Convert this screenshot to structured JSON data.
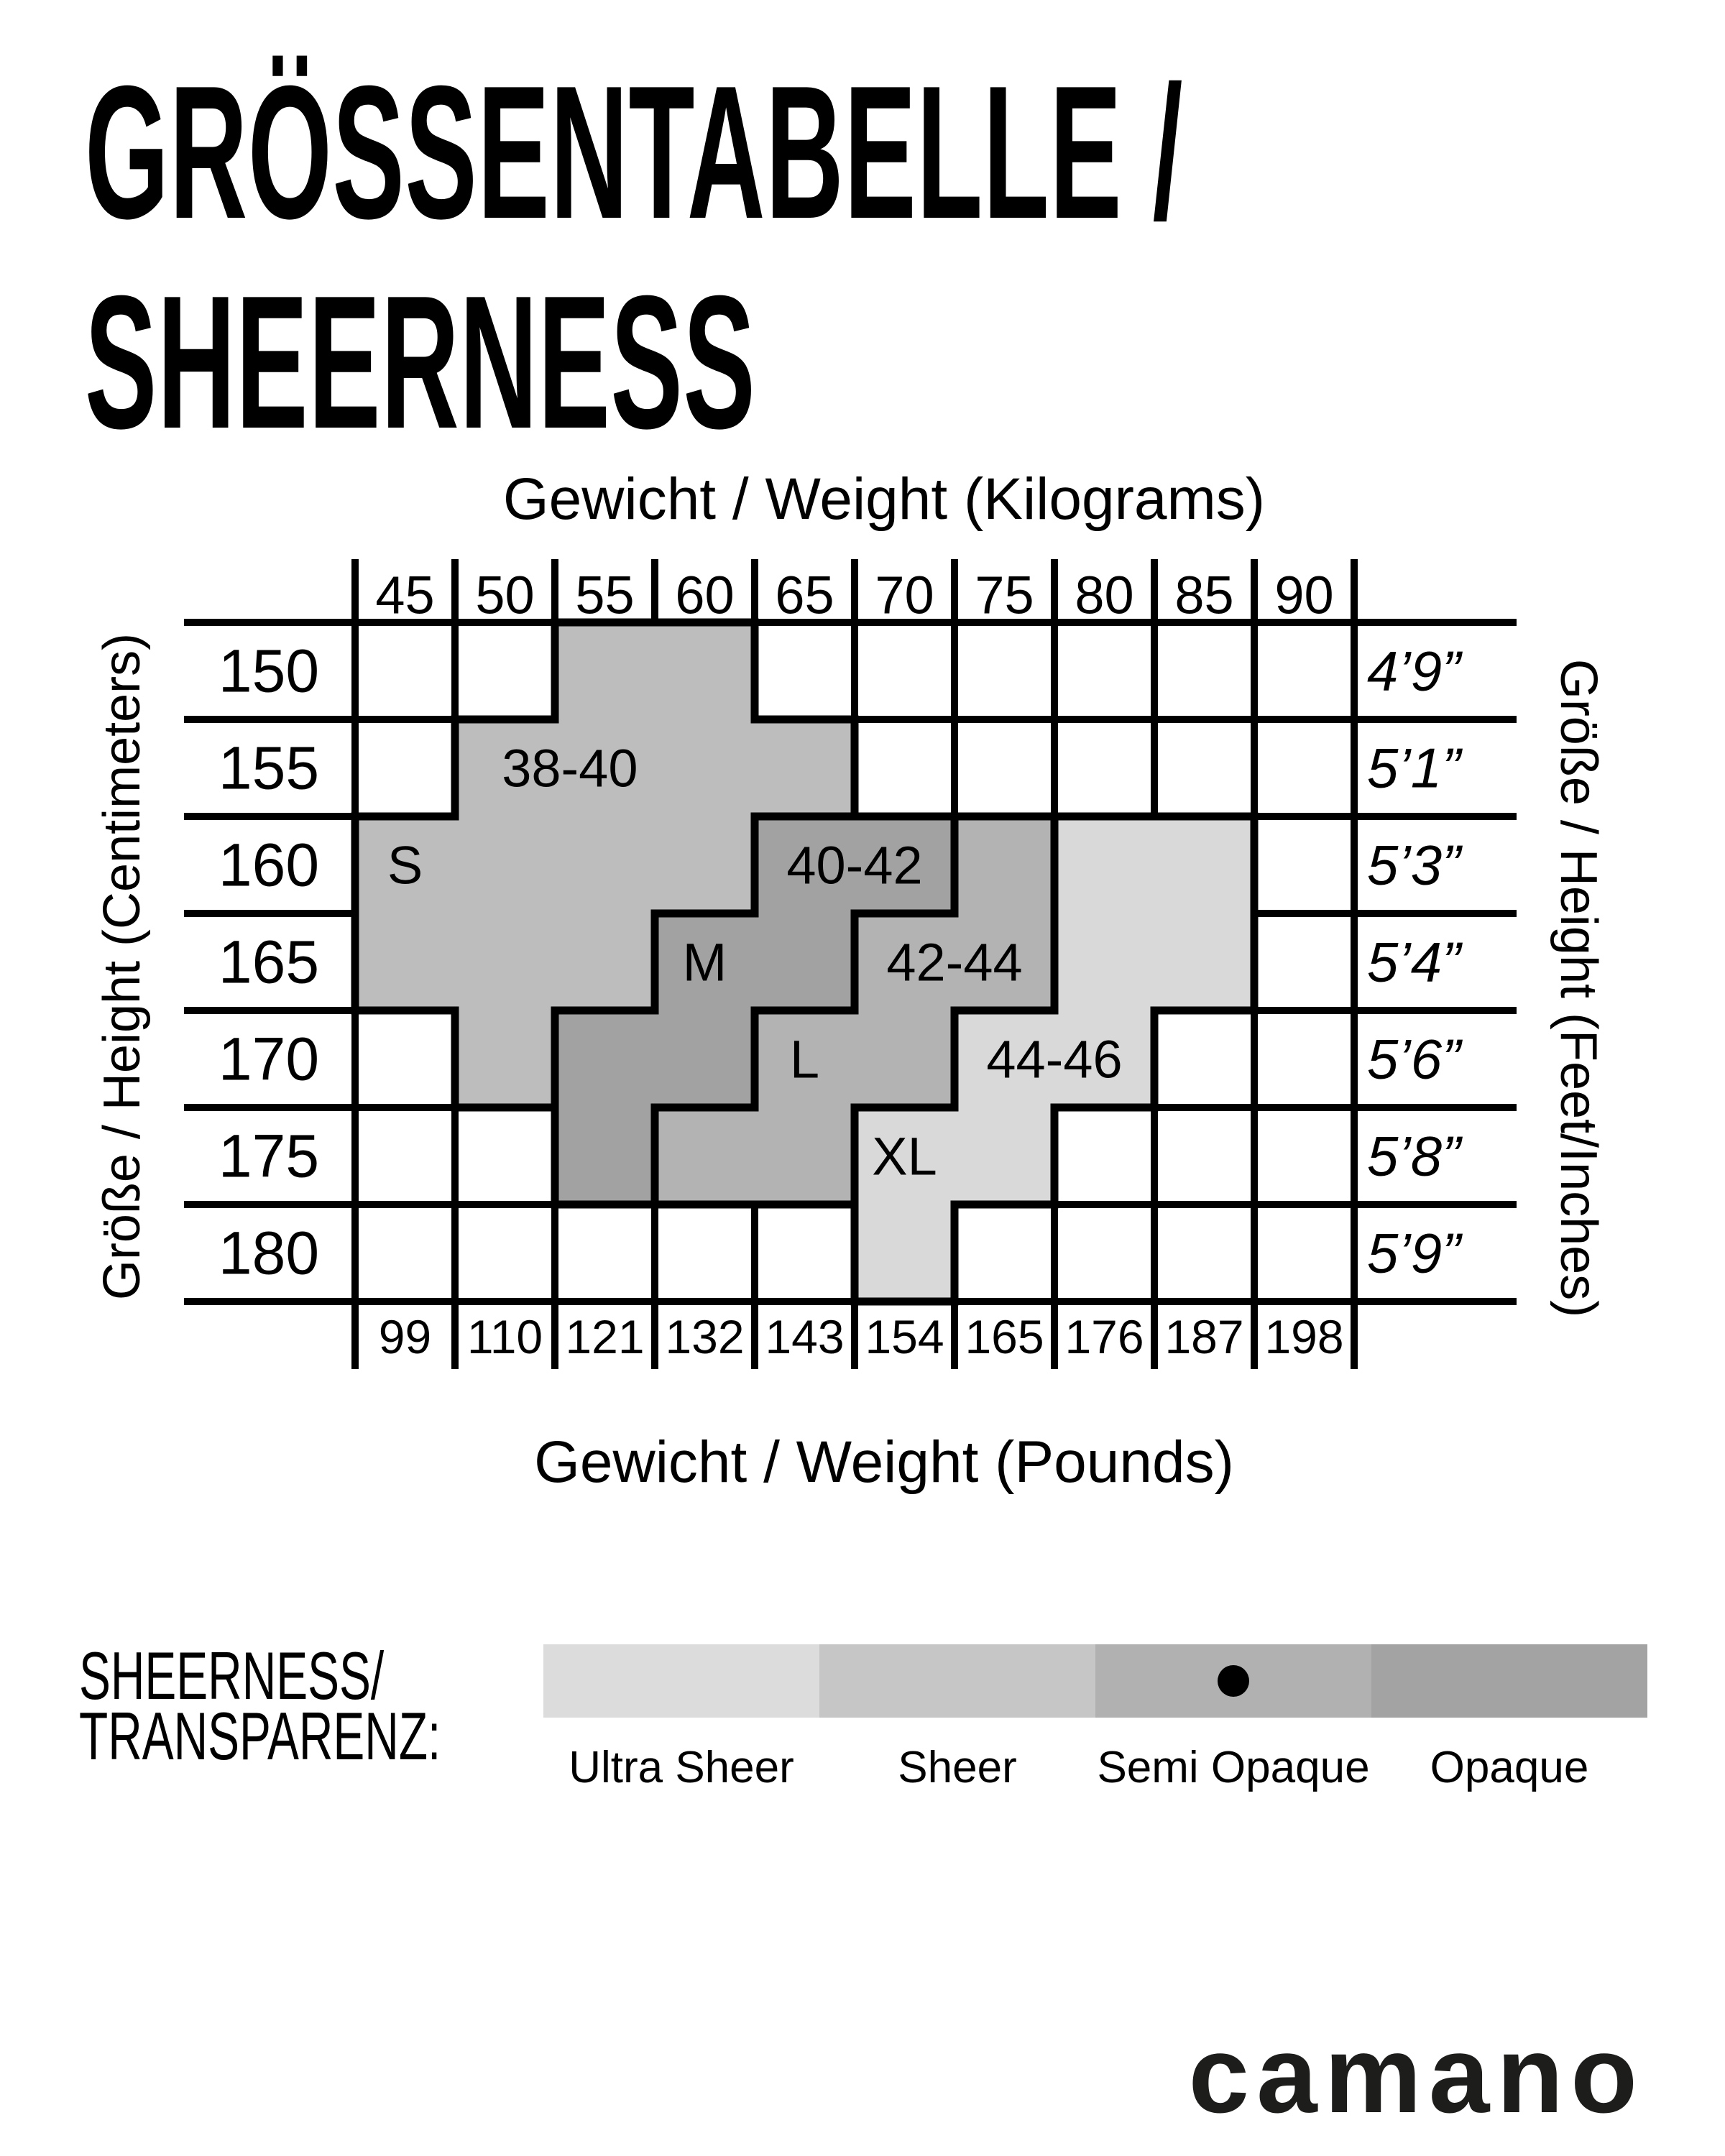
{
  "page_title": {
    "line1": "GRÖSSENTABELLE /",
    "line2": "SHEERNESS"
  },
  "axes": {
    "top_title": "Gewicht / Weight (Kilograms)",
    "bottom_title": "Gewicht / Weight (Pounds)",
    "left_title": "Größe / Height (Centimeters)",
    "right_title": "Größe / Height (Feet/Inches)"
  },
  "chart_data": {
    "type": "heatmap",
    "x_top_kilograms": [
      "45",
      "50",
      "55",
      "60",
      "65",
      "70",
      "75",
      "80",
      "85",
      "90"
    ],
    "x_bottom_pounds": [
      "99",
      "110",
      "121",
      "132",
      "143",
      "154",
      "165",
      "176",
      "187",
      "198"
    ],
    "y_left_centimeters": [
      "150",
      "155",
      "160",
      "165",
      "170",
      "175",
      "180"
    ],
    "y_right_feet_inches": [
      "4’9”",
      "5’1”",
      "5’3”",
      "5’4”",
      "5’6”",
      "5’8”",
      "5’9”"
    ],
    "grid": {
      "columns": 10,
      "rows": 7,
      "line_color": "#000000"
    },
    "regions": [
      {
        "size": "S",
        "color": "#bdbdbd",
        "cells": [
          {
            "row": 0,
            "c0": 2,
            "c1": 3
          },
          {
            "row": 1,
            "c0": 1,
            "c1": 4
          },
          {
            "row": 2,
            "c0": 0,
            "c1": 3
          },
          {
            "row": 3,
            "c0": 0,
            "c1": 2
          },
          {
            "row": 4,
            "c0": 1,
            "c1": 1
          }
        ],
        "labels": [
          {
            "text": "38-40",
            "row": 1,
            "col": 2.15
          },
          {
            "text": "S",
            "row": 2,
            "col": 0.5
          }
        ]
      },
      {
        "size": "M",
        "color": "#a2a2a2",
        "cells": [
          {
            "row": 2,
            "c0": 4,
            "c1": 5
          },
          {
            "row": 3,
            "c0": 3,
            "c1": 4
          },
          {
            "row": 4,
            "c0": 2,
            "c1": 3
          },
          {
            "row": 5,
            "c0": 2,
            "c1": 2
          }
        ],
        "labels": [
          {
            "text": "40-42",
            "row": 2,
            "col": 5.0
          },
          {
            "text": "M",
            "row": 3,
            "col": 3.5
          }
        ]
      },
      {
        "size": "L",
        "color": "#b3b3b3",
        "cells": [
          {
            "row": 2,
            "c0": 6,
            "c1": 6
          },
          {
            "row": 3,
            "c0": 5,
            "c1": 6
          },
          {
            "row": 4,
            "c0": 4,
            "c1": 5
          },
          {
            "row": 5,
            "c0": 3,
            "c1": 4
          }
        ],
        "labels": [
          {
            "text": "42-44",
            "row": 3,
            "col": 6.0
          },
          {
            "text": "L",
            "row": 4,
            "col": 4.5
          }
        ]
      },
      {
        "size": "XL",
        "color": "#d9d9d9",
        "cells": [
          {
            "row": 2,
            "c0": 7,
            "c1": 8
          },
          {
            "row": 3,
            "c0": 7,
            "c1": 8
          },
          {
            "row": 4,
            "c0": 6,
            "c1": 7
          },
          {
            "row": 5,
            "c0": 5,
            "c1": 6
          },
          {
            "row": 6,
            "c0": 5,
            "c1": 5
          }
        ],
        "labels": [
          {
            "text": "44-46",
            "row": 4,
            "col": 7.0
          },
          {
            "text": "XL",
            "row": 5,
            "col": 5.5
          }
        ]
      }
    ]
  },
  "legend": {
    "title_line1": "SHEERNESS/",
    "title_line2": "TRANSPARENZ:",
    "items": [
      {
        "label": "Ultra Sheer",
        "color": "#dcdcdc",
        "marked": false
      },
      {
        "label": "Sheer",
        "color": "#c6c6c6",
        "marked": false
      },
      {
        "label": "Semi Opaque",
        "color": "#b1b1b1",
        "marked": true
      },
      {
        "label": "Opaque",
        "color": "#a3a3a3",
        "marked": false
      }
    ]
  },
  "brand": {
    "logo_text": "camano"
  }
}
